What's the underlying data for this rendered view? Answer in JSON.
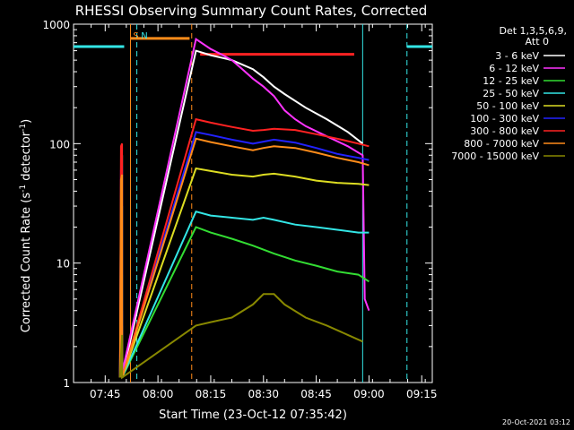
{
  "chart_data": {
    "type": "line",
    "title": "RHESSI Observing Summary Count Rates, Corrected",
    "xlabel": "Start Time (23-Oct-12 07:35:42)",
    "ylabel_main": "Corrected Count Rate (s",
    "ylabel_sup1": "-1",
    "ylabel_mid": " detector",
    "ylabel_sup2": "-1",
    "ylabel_end": ")",
    "yscale": "log",
    "ylim": [
      1,
      1000
    ],
    "xlim": [
      7.6,
      9.3
    ],
    "y_ticks": [
      {
        "v": 1,
        "label": "1"
      },
      {
        "v": 10,
        "label": "10"
      },
      {
        "v": 100,
        "label": "100"
      },
      {
        "v": 1000,
        "label": "1000"
      }
    ],
    "x_ticks": [
      {
        "v": 7.75,
        "label": "07:45"
      },
      {
        "v": 8.0,
        "label": "08:00"
      },
      {
        "v": 8.25,
        "label": "08:15"
      },
      {
        "v": 8.5,
        "label": "08:30"
      },
      {
        "v": 8.75,
        "label": "08:45"
      },
      {
        "v": 9.0,
        "label": "09:00"
      },
      {
        "v": 9.25,
        "label": "09:15"
      }
    ],
    "legend_header1": "Det 1,3,5,6,9,",
    "legend_header2": "Att 0",
    "legend_position": "right",
    "footer_date": "20-Oct-2021 03:12",
    "markers": [
      {
        "label": "S",
        "x": 7.87,
        "color": "#ff8c1a"
      },
      {
        "label": "N",
        "x": 7.91,
        "color": "#33e6e6"
      }
    ],
    "series": [
      {
        "name": "3 - 6 keV",
        "color": "#ffffff",
        "points": [
          [
            7.82,
            1.1
          ],
          [
            7.825,
            10
          ],
          [
            7.83,
            80
          ],
          [
            7.83,
            1.1
          ],
          [
            8.18,
            600
          ],
          [
            8.25,
            550
          ],
          [
            8.35,
            500
          ],
          [
            8.45,
            420
          ],
          [
            8.5,
            360
          ],
          [
            8.55,
            300
          ],
          [
            8.6,
            260
          ],
          [
            8.7,
            200
          ],
          [
            8.8,
            160
          ],
          [
            8.9,
            125
          ],
          [
            8.97,
            100
          ]
        ]
      },
      {
        "name": "6 - 12 keV",
        "color": "#ff33ff",
        "points": [
          [
            7.82,
            1.2
          ],
          [
            7.825,
            3
          ],
          [
            7.83,
            4
          ],
          [
            7.83,
            1.2
          ],
          [
            8.18,
            750
          ],
          [
            8.25,
            620
          ],
          [
            8.3,
            560
          ],
          [
            8.35,
            500
          ],
          [
            8.4,
            420
          ],
          [
            8.45,
            350
          ],
          [
            8.5,
            300
          ],
          [
            8.55,
            250
          ],
          [
            8.6,
            190
          ],
          [
            8.65,
            160
          ],
          [
            8.7,
            140
          ],
          [
            8.8,
            115
          ],
          [
            8.9,
            95
          ],
          [
            8.97,
            80
          ],
          [
            8.98,
            5
          ],
          [
            9.0,
            4
          ]
        ]
      },
      {
        "name": "12 - 25 keV",
        "color": "#33dd33",
        "points": [
          [
            7.82,
            1.1
          ],
          [
            7.825,
            5
          ],
          [
            7.83,
            8
          ],
          [
            7.83,
            1.1
          ],
          [
            8.18,
            20
          ],
          [
            8.25,
            18
          ],
          [
            8.35,
            16
          ],
          [
            8.45,
            14
          ],
          [
            8.55,
            12
          ],
          [
            8.65,
            10.5
          ],
          [
            8.75,
            9.5
          ],
          [
            8.85,
            8.5
          ],
          [
            8.95,
            8
          ],
          [
            9.0,
            7
          ]
        ]
      },
      {
        "name": "25 - 50 keV",
        "color": "#33e6e6",
        "points": [
          [
            7.82,
            1.1
          ],
          [
            7.825,
            25
          ],
          [
            7.83,
            30
          ],
          [
            7.83,
            1.1
          ],
          [
            8.18,
            27
          ],
          [
            8.25,
            25
          ],
          [
            8.35,
            24
          ],
          [
            8.45,
            23
          ],
          [
            8.5,
            24
          ],
          [
            8.55,
            23
          ],
          [
            8.65,
            21
          ],
          [
            8.75,
            20
          ],
          [
            8.85,
            19
          ],
          [
            8.95,
            18
          ],
          [
            9.0,
            18
          ]
        ]
      },
      {
        "name": "50 - 100 keV",
        "color": "#dddd22",
        "points": [
          [
            7.82,
            1.1
          ],
          [
            7.83,
            3
          ],
          [
            7.83,
            1.1
          ],
          [
            8.18,
            62
          ],
          [
            8.25,
            59
          ],
          [
            8.35,
            55
          ],
          [
            8.45,
            53
          ],
          [
            8.5,
            55
          ],
          [
            8.55,
            56
          ],
          [
            8.65,
            53
          ],
          [
            8.75,
            49
          ],
          [
            8.85,
            47
          ],
          [
            8.95,
            46
          ],
          [
            9.0,
            45
          ]
        ]
      },
      {
        "name": "100 - 300 keV",
        "color": "#2222ff",
        "points": [
          [
            7.82,
            1.1
          ],
          [
            7.825,
            60
          ],
          [
            7.83,
            65
          ],
          [
            7.83,
            1.1
          ],
          [
            8.18,
            125
          ],
          [
            8.25,
            118
          ],
          [
            8.35,
            108
          ],
          [
            8.45,
            100
          ],
          [
            8.5,
            104
          ],
          [
            8.55,
            108
          ],
          [
            8.65,
            102
          ],
          [
            8.75,
            92
          ],
          [
            8.85,
            82
          ],
          [
            8.95,
            76
          ],
          [
            9.0,
            73
          ]
        ]
      },
      {
        "name": "300 - 800 keV",
        "color": "#ff2222",
        "points": [
          [
            7.82,
            1.1
          ],
          [
            7.825,
            95
          ],
          [
            7.83,
            100
          ],
          [
            7.83,
            1.1
          ],
          [
            8.18,
            160
          ],
          [
            8.25,
            150
          ],
          [
            8.35,
            138
          ],
          [
            8.45,
            128
          ],
          [
            8.5,
            130
          ],
          [
            8.55,
            133
          ],
          [
            8.65,
            130
          ],
          [
            8.75,
            120
          ],
          [
            8.85,
            110
          ],
          [
            8.95,
            100
          ],
          [
            9.0,
            95
          ]
        ]
      },
      {
        "name": "800 - 7000 keV",
        "color": "#ff8c1a",
        "points": [
          [
            7.82,
            1.1
          ],
          [
            7.825,
            50
          ],
          [
            7.83,
            55
          ],
          [
            7.83,
            1.1
          ],
          [
            8.18,
            110
          ],
          [
            8.25,
            103
          ],
          [
            8.35,
            95
          ],
          [
            8.45,
            88
          ],
          [
            8.5,
            92
          ],
          [
            8.55,
            95
          ],
          [
            8.65,
            92
          ],
          [
            8.75,
            84
          ],
          [
            8.85,
            76
          ],
          [
            8.95,
            70
          ],
          [
            9.0,
            66
          ]
        ]
      },
      {
        "name": "7000 - 15000 keV",
        "color": "#888800",
        "points": [
          [
            7.82,
            1.1
          ],
          [
            7.83,
            2.5
          ],
          [
            7.83,
            1.1
          ],
          [
            8.18,
            3
          ],
          [
            8.25,
            3.2
          ],
          [
            8.35,
            3.5
          ],
          [
            8.45,
            4.5
          ],
          [
            8.5,
            5.5
          ],
          [
            8.55,
            5.5
          ],
          [
            8.6,
            4.5
          ],
          [
            8.7,
            3.5
          ],
          [
            8.8,
            3
          ],
          [
            8.9,
            2.5
          ],
          [
            8.97,
            2.2
          ]
        ]
      }
    ],
    "flags": [
      {
        "color": "#33e6e6",
        "y": 650,
        "segments": [
          [
            7.6,
            7.84
          ],
          [
            9.18,
            9.3
          ]
        ]
      },
      {
        "color": "#ff8c1a",
        "y": 760,
        "segments": [
          [
            7.87,
            8.15
          ]
        ]
      },
      {
        "color": "#ff2222",
        "y": 560,
        "segments": [
          [
            8.2,
            8.93
          ]
        ]
      }
    ],
    "vlines": [
      {
        "x": 7.9,
        "color": "#33e6e6",
        "style": "dashed"
      },
      {
        "x": 8.16,
        "color": "#ff8c1a",
        "style": "dashed"
      },
      {
        "x": 9.18,
        "color": "#33e6e6",
        "style": "dashed"
      },
      {
        "x": 7.87,
        "color": "#ff8c1a",
        "style": "solid"
      },
      {
        "x": 8.97,
        "color": "#33e6e6",
        "style": "solid"
      }
    ]
  }
}
